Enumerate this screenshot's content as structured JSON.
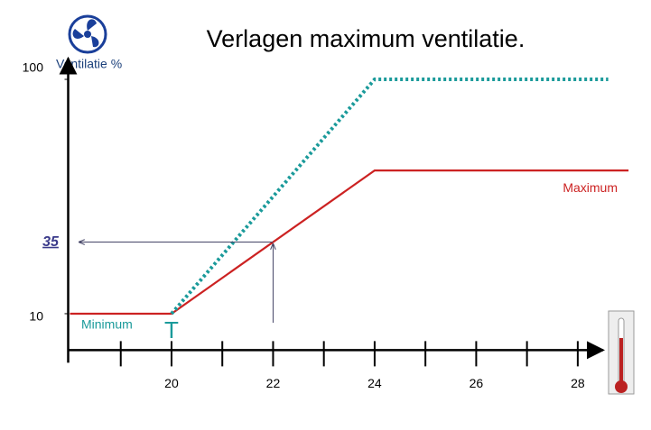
{
  "chart_data": {
    "type": "line",
    "title": "Verlagen maximum ventilatie.",
    "y_label": "Ventilatie %",
    "xlim": [
      18,
      28.5
    ],
    "ylim": [
      -4,
      106
    ],
    "xticks": [
      20,
      22,
      24,
      26,
      28
    ],
    "xminor_ticks": [
      19,
      21,
      23,
      25,
      27
    ],
    "yticks": [
      10,
      100
    ],
    "series": [
      {
        "name": "Maximum",
        "color": "#cc2222",
        "dash": false,
        "x": [
          18,
          20,
          24,
          29
        ],
        "values": [
          10,
          10,
          65,
          65
        ]
      },
      {
        "color": "#1a9a9a",
        "dash": true,
        "x": [
          20,
          24,
          28.6
        ],
        "values": [
          10,
          100,
          100
        ]
      }
    ],
    "annotations": {
      "minimum": "Minimum",
      "setpoint": "T",
      "marker_label": "35"
    },
    "marker_x": 22
  }
}
